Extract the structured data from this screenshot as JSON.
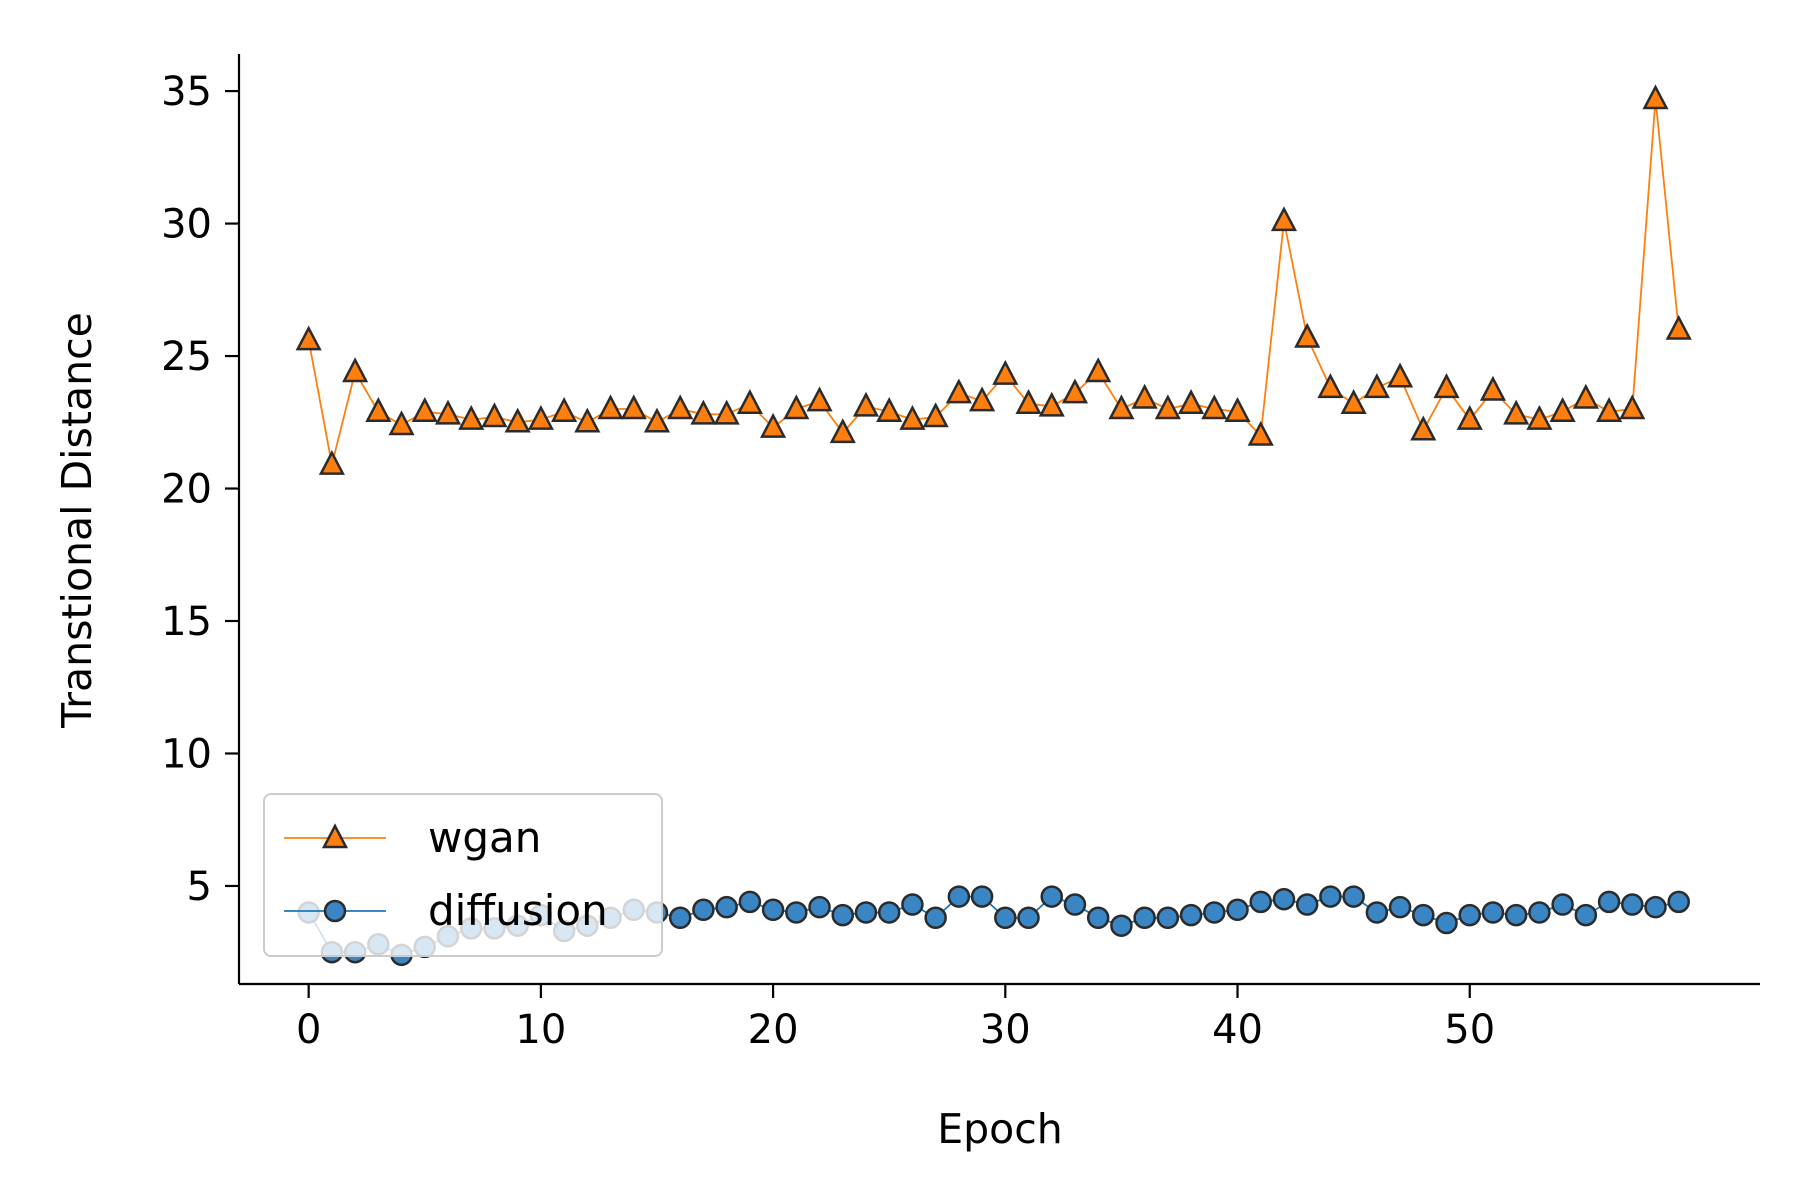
{
  "chart_data": {
    "type": "line",
    "xlabel": "Epoch",
    "ylabel": "Transtional Distance",
    "xlim": [
      -3,
      62.5
    ],
    "ylim": [
      1.3,
      36.4
    ],
    "xticks": [
      0,
      10,
      20,
      30,
      40,
      50
    ],
    "yticks": [
      5,
      10,
      15,
      20,
      25,
      30,
      35
    ],
    "grid": false,
    "legend_position": "lower-left",
    "x": [
      0,
      1,
      2,
      3,
      4,
      5,
      6,
      7,
      8,
      9,
      10,
      11,
      12,
      13,
      14,
      15,
      16,
      17,
      18,
      19,
      20,
      21,
      22,
      23,
      24,
      25,
      26,
      27,
      28,
      29,
      30,
      31,
      32,
      33,
      34,
      35,
      36,
      37,
      38,
      39,
      40,
      41,
      42,
      43,
      44,
      45,
      46,
      47,
      48,
      49,
      50,
      51,
      52,
      53,
      54,
      55,
      56,
      57,
      58,
      59
    ],
    "series": [
      {
        "name": "wgan",
        "color": "#ff7f0e",
        "marker": "triangle",
        "values": [
          25.6,
          20.9,
          24.4,
          22.9,
          22.4,
          22.9,
          22.8,
          22.6,
          22.7,
          22.5,
          22.6,
          22.9,
          22.5,
          23.0,
          23.0,
          22.5,
          23.0,
          22.8,
          22.8,
          23.2,
          22.3,
          23.0,
          23.3,
          22.1,
          23.1,
          22.9,
          22.6,
          22.7,
          23.6,
          23.3,
          24.3,
          23.2,
          23.1,
          23.6,
          24.4,
          23.0,
          23.4,
          23.0,
          23.2,
          23.0,
          22.9,
          22.0,
          30.1,
          25.7,
          23.8,
          23.2,
          23.8,
          24.2,
          22.2,
          23.8,
          22.6,
          23.7,
          22.8,
          22.6,
          22.9,
          23.4,
          22.9,
          23.0,
          34.7,
          26.0
        ]
      },
      {
        "name": "diffusion",
        "color": "#1f77b4",
        "marker": "circle",
        "values": [
          4.0,
          2.5,
          2.5,
          2.8,
          2.4,
          2.7,
          3.1,
          3.4,
          3.4,
          3.5,
          3.9,
          3.3,
          3.5,
          3.8,
          4.1,
          4.0,
          3.8,
          4.1,
          4.2,
          4.4,
          4.1,
          4.0,
          4.2,
          3.9,
          4.0,
          4.0,
          4.3,
          3.8,
          4.6,
          4.6,
          3.8,
          3.8,
          4.6,
          4.3,
          3.8,
          3.5,
          3.8,
          3.8,
          3.9,
          4.0,
          4.1,
          4.4,
          4.5,
          4.3,
          4.6,
          4.6,
          4.0,
          4.2,
          3.9,
          3.6,
          3.9,
          4.0,
          3.9,
          4.0,
          4.3,
          3.9,
          4.4,
          4.3,
          4.2,
          4.4
        ]
      }
    ]
  }
}
